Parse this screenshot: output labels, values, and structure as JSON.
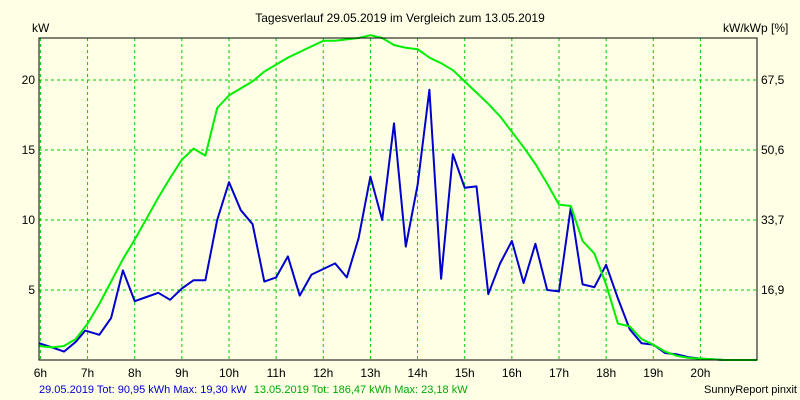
{
  "chart_data": {
    "type": "line",
    "title": "Tagesverlauf 29.05.2019 im Vergleich zum 13.05.2019",
    "ylabel": "kW",
    "y2label": "kW/kWp [%]",
    "ylim": [
      0,
      23
    ],
    "y_ticks": [
      "5",
      "10",
      "15",
      "20"
    ],
    "y_tick_values": [
      5,
      10,
      15,
      20
    ],
    "y2_ticks": [
      "16,9",
      "33,7",
      "50,6",
      "67,5"
    ],
    "x_ticks": [
      "6h",
      "7h",
      "8h",
      "9h",
      "10h",
      "11h",
      "12h",
      "13h",
      "14h",
      "15h",
      "16h",
      "17h",
      "18h",
      "19h",
      "20h"
    ],
    "x_tick_values": [
      6,
      7,
      8,
      9,
      10,
      11,
      12,
      13,
      14,
      15,
      16,
      17,
      18,
      19,
      20
    ],
    "xlim": [
      5.97,
      21.2
    ],
    "grid": true,
    "colors": {
      "background": "#ffffe6",
      "grid": "#00cc00",
      "axis": "#000000",
      "series_blue": "#0000cc",
      "series_green": "#00ee00",
      "footer_blue": "#0000cc",
      "footer_green": "#00aa00"
    },
    "series": [
      {
        "name": "29.05.2019",
        "color": "#0000cc",
        "x": [
          5.97,
          6.25,
          6.5,
          6.75,
          6.95,
          7.25,
          7.5,
          7.75,
          8.0,
          8.25,
          8.5,
          8.75,
          9.0,
          9.25,
          9.5,
          9.75,
          10.0,
          10.25,
          10.5,
          10.75,
          11.0,
          11.25,
          11.5,
          11.75,
          12.0,
          12.25,
          12.5,
          12.75,
          13.0,
          13.25,
          13.5,
          13.75,
          14.0,
          14.25,
          14.5,
          14.75,
          15.0,
          15.25,
          15.5,
          15.75,
          16.0,
          16.25,
          16.5,
          16.75,
          17.0,
          17.25,
          17.5,
          17.75,
          18.0,
          18.25,
          18.5,
          18.75,
          19.0,
          19.25,
          19.5,
          19.75,
          20.0,
          20.25,
          20.5,
          20.75,
          21.0,
          21.2
        ],
        "y": [
          1.2,
          0.9,
          0.6,
          1.3,
          2.1,
          1.8,
          3.0,
          6.4,
          4.2,
          4.5,
          4.8,
          4.3,
          5.1,
          5.7,
          5.7,
          10.0,
          12.7,
          10.7,
          9.7,
          5.6,
          5.9,
          7.4,
          4.6,
          6.1,
          6.5,
          6.9,
          5.9,
          8.7,
          13.1,
          10.0,
          16.9,
          8.1,
          12.5,
          19.3,
          5.8,
          14.7,
          12.3,
          12.4,
          4.7,
          6.9,
          8.5,
          5.5,
          8.3,
          5.0,
          4.9,
          10.9,
          5.4,
          5.2,
          6.8,
          4.4,
          2.2,
          1.2,
          1.1,
          0.5,
          0.4,
          0.2,
          0.1,
          0.05,
          0.0,
          0.0,
          0.0,
          0.0
        ]
      },
      {
        "name": "13.05.2019",
        "color": "#00ee00",
        "x": [
          5.97,
          6.25,
          6.5,
          6.75,
          7.0,
          7.25,
          7.5,
          7.75,
          8.0,
          8.25,
          8.5,
          8.75,
          9.0,
          9.25,
          9.5,
          9.75,
          10.0,
          10.25,
          10.5,
          10.75,
          11.0,
          11.25,
          11.5,
          11.75,
          12.0,
          12.25,
          12.5,
          12.75,
          13.0,
          13.25,
          13.5,
          13.75,
          14.0,
          14.25,
          14.5,
          14.75,
          15.0,
          15.25,
          15.5,
          15.75,
          16.0,
          16.25,
          16.5,
          16.75,
          17.0,
          17.25,
          17.5,
          17.75,
          18.0,
          18.25,
          18.5,
          18.75,
          19.0,
          19.25,
          19.5,
          19.75,
          20.0,
          20.25,
          20.5,
          20.75,
          21.0,
          21.2
        ],
        "y": [
          1.0,
          0.9,
          1.0,
          1.5,
          2.6,
          4.0,
          5.6,
          7.2,
          8.6,
          10.1,
          11.6,
          13.0,
          14.3,
          15.1,
          14.6,
          18.0,
          18.9,
          19.4,
          19.9,
          20.6,
          21.1,
          21.6,
          22.0,
          22.4,
          22.8,
          22.8,
          22.9,
          23.0,
          23.2,
          23.0,
          22.5,
          22.3,
          22.2,
          21.6,
          21.2,
          20.7,
          19.9,
          19.1,
          18.3,
          17.4,
          16.3,
          15.2,
          14.0,
          12.6,
          11.1,
          11.0,
          8.5,
          7.6,
          5.4,
          2.6,
          2.4,
          1.5,
          1.1,
          0.6,
          0.3,
          0.15,
          0.1,
          0.05,
          0.0,
          0.0,
          0.0,
          0.0
        ]
      }
    ],
    "footer": {
      "blue": "29.05.2019 Tot: 90,95 kWh Max: 19,30 kW",
      "green": "13.05.2019 Tot: 186,47 kWh Max: 23,18 kW",
      "credit": "SunnyReport pinxit"
    }
  }
}
